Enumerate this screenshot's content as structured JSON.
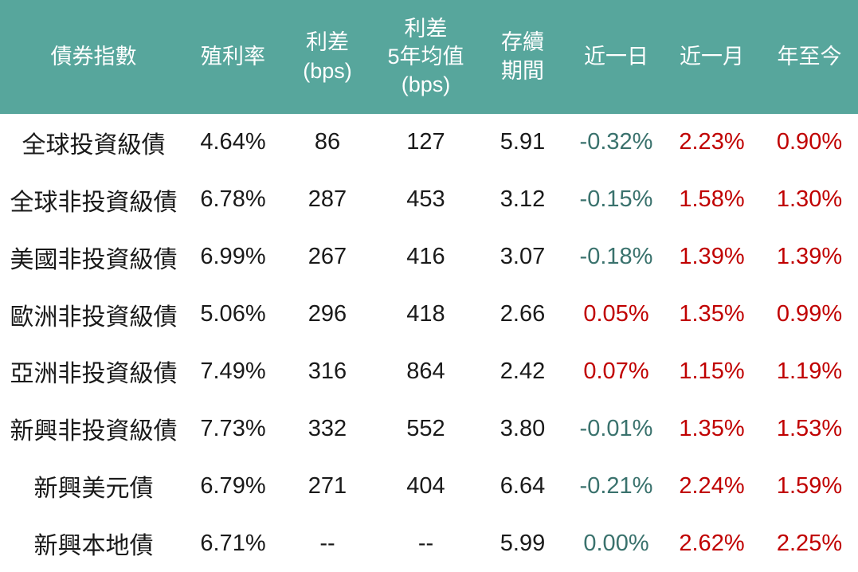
{
  "palette": {
    "header_bg": "#57A69C",
    "header_text": "#FFFFFF",
    "body_bg": "#FFFFFF",
    "text": "#1A1A1A",
    "positive_red": "#C00000",
    "negative_teal": "#3A726D"
  },
  "chart_data": {
    "type": "table",
    "columns": [
      {
        "id": "name",
        "label": "債券指數"
      },
      {
        "id": "yield",
        "label": "殖利率"
      },
      {
        "id": "spread_bps",
        "label": "利差\n(bps)"
      },
      {
        "id": "spread_5y_avg_bps",
        "label": "利差\n5年均值\n(bps)"
      },
      {
        "id": "duration",
        "label": "存續\n期間"
      },
      {
        "id": "chg_1d",
        "label": "近一日"
      },
      {
        "id": "chg_1m",
        "label": "近一月"
      },
      {
        "id": "chg_ytd",
        "label": "年至今"
      }
    ],
    "rows": [
      {
        "name": "全球投資級債",
        "yield": "4.64%",
        "spread_bps": "86",
        "spread_5y_avg_bps": "127",
        "duration": "5.91",
        "chg_1d": "-0.32%",
        "chg_1d_tone": "down",
        "chg_1m": "2.23%",
        "chg_1m_tone": "up",
        "chg_ytd": "0.90%",
        "chg_ytd_tone": "up"
      },
      {
        "name": "全球非投資級債",
        "yield": "6.78%",
        "spread_bps": "287",
        "spread_5y_avg_bps": "453",
        "duration": "3.12",
        "chg_1d": "-0.15%",
        "chg_1d_tone": "down",
        "chg_1m": "1.58%",
        "chg_1m_tone": "up",
        "chg_ytd": "1.30%",
        "chg_ytd_tone": "up"
      },
      {
        "name": "美國非投資級債",
        "yield": "6.99%",
        "spread_bps": "267",
        "spread_5y_avg_bps": "416",
        "duration": "3.07",
        "chg_1d": "-0.18%",
        "chg_1d_tone": "down",
        "chg_1m": "1.39%",
        "chg_1m_tone": "up",
        "chg_ytd": "1.39%",
        "chg_ytd_tone": "up"
      },
      {
        "name": "歐洲非投資級債",
        "yield": "5.06%",
        "spread_bps": "296",
        "spread_5y_avg_bps": "418",
        "duration": "2.66",
        "chg_1d": "0.05%",
        "chg_1d_tone": "up",
        "chg_1m": "1.35%",
        "chg_1m_tone": "up",
        "chg_ytd": "0.99%",
        "chg_ytd_tone": "up"
      },
      {
        "name": "亞洲非投資級債",
        "yield": "7.49%",
        "spread_bps": "316",
        "spread_5y_avg_bps": "864",
        "duration": "2.42",
        "chg_1d": "0.07%",
        "chg_1d_tone": "up",
        "chg_1m": "1.15%",
        "chg_1m_tone": "up",
        "chg_ytd": "1.19%",
        "chg_ytd_tone": "up"
      },
      {
        "name": "新興非投資級債",
        "yield": "7.73%",
        "spread_bps": "332",
        "spread_5y_avg_bps": "552",
        "duration": "3.80",
        "chg_1d": "-0.01%",
        "chg_1d_tone": "down",
        "chg_1m": "1.35%",
        "chg_1m_tone": "up",
        "chg_ytd": "1.53%",
        "chg_ytd_tone": "up"
      },
      {
        "name": "新興美元債",
        "yield": "6.79%",
        "spread_bps": "271",
        "spread_5y_avg_bps": "404",
        "duration": "6.64",
        "chg_1d": "-0.21%",
        "chg_1d_tone": "down",
        "chg_1m": "2.24%",
        "chg_1m_tone": "up",
        "chg_ytd": "1.59%",
        "chg_ytd_tone": "up"
      },
      {
        "name": "新興本地債",
        "yield": "6.71%",
        "spread_bps": "--",
        "spread_5y_avg_bps": "--",
        "duration": "5.99",
        "chg_1d": "0.00%",
        "chg_1d_tone": "down",
        "chg_1m": "2.62%",
        "chg_1m_tone": "up",
        "chg_ytd": "2.25%",
        "chg_ytd_tone": "up"
      }
    ]
  }
}
